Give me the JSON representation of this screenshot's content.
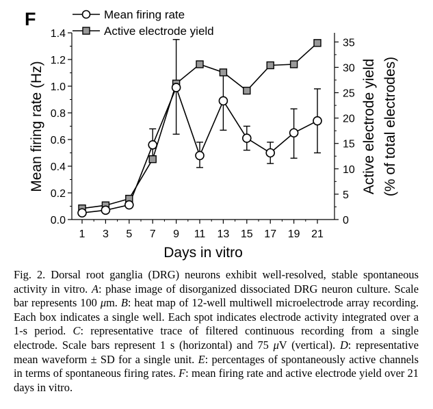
{
  "panel_label": "F",
  "caption": {
    "parts": [
      {
        "t": "Fig. 2. Dorsal root ganglia (DRG) neurons exhibit well-resolved, stable spontaneous activity in vitro. ",
        "i": false
      },
      {
        "t": "A",
        "i": true
      },
      {
        "t": ": phase image of disorganized dissociated DRG neuron culture. Scale bar represents 100 ",
        "i": false
      },
      {
        "t": "μ",
        "i": true
      },
      {
        "t": "m. ",
        "i": false
      },
      {
        "t": "B",
        "i": true
      },
      {
        "t": ": heat map of 12-well multiwell microelectrode array recording. Each box indicates a single well. Each spot indicates electrode activity integrated over a 1-s period. ",
        "i": false
      },
      {
        "t": "C",
        "i": true
      },
      {
        "t": ": representative trace of filtered continuous recording from a single electrode. Scale bars represent 1 s (horizontal) and 75 ",
        "i": false
      },
      {
        "t": "μ",
        "i": true
      },
      {
        "t": "V (vertical). ",
        "i": false
      },
      {
        "t": "D",
        "i": true
      },
      {
        "t": ": representative mean waveform ± SD for a single unit. ",
        "i": false
      },
      {
        "t": "E",
        "i": true
      },
      {
        "t": ": percentages of spontaneously active channels in terms of spontaneous firing rates. ",
        "i": false
      },
      {
        "t": "F",
        "i": true
      },
      {
        "t": ": mean firing rate and active electrode yield over 21 days in vitro.",
        "i": false
      }
    ]
  },
  "chart_data": {
    "type": "line",
    "x": [
      1,
      3,
      5,
      7,
      9,
      11,
      13,
      15,
      17,
      19,
      21
    ],
    "xlabel": "Days in vitro",
    "ylabel_left": "Mean firing rate (Hz)",
    "ylabel_right_line1": "Active electrode yield",
    "ylabel_right_line2": "(% of total electrodes)",
    "ylim_left": [
      0,
      1.4
    ],
    "ylim_right": [
      0,
      36.8
    ],
    "xticks": [
      1,
      3,
      5,
      7,
      9,
      11,
      13,
      15,
      17,
      19,
      21
    ],
    "yticks_left": [
      "0.0",
      "0.2",
      "0.4",
      "0.6",
      "0.8",
      "1.0",
      "1.2",
      "1.4"
    ],
    "yticks_right": [
      "0",
      "5",
      "10",
      "15",
      "20",
      "25",
      "30",
      "35"
    ],
    "legend_position": "top-left",
    "grid": false,
    "series": [
      {
        "name": "Mean firing rate",
        "axis": "left",
        "marker": "circle",
        "values": [
          0.05,
          0.07,
          0.11,
          0.56,
          0.99,
          0.48,
          0.89,
          0.61,
          0.5,
          0.65,
          0.74
        ],
        "err_low": [
          0.05,
          0.07,
          0.11,
          0.45,
          0.64,
          0.39,
          0.67,
          0.52,
          0.42,
          0.46,
          0.5
        ],
        "err_high": [
          0.05,
          0.07,
          0.11,
          0.68,
          1.35,
          0.58,
          1.09,
          0.7,
          0.58,
          0.83,
          0.98
        ]
      },
      {
        "name": "Active electrode yield",
        "axis": "right",
        "marker": "square",
        "values": [
          2.2,
          2.8,
          4.1,
          11.9,
          26.8,
          30.6,
          29.0,
          25.4,
          30.4,
          30.6,
          34.8
        ]
      }
    ]
  }
}
